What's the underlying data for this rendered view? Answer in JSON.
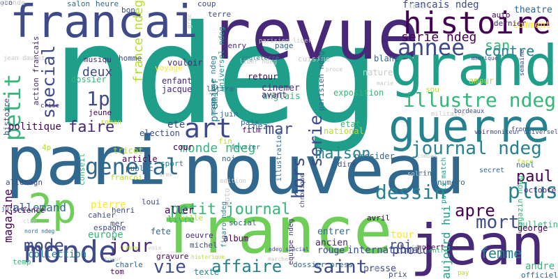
{
  "cloud": {
    "palette": {
      "d": "#440154",
      "p": "#482878",
      "i": "#3e4a89",
      "b": "#31688e",
      "t": "#26828e",
      "g": "#1f9e89",
      "m": "#35b779",
      "l": "#6ece58",
      "y": "#b5de2b",
      "k": "#fde725",
      "s": "#c8c8c8"
    },
    "words": [
      {
        "text": "ndeg",
        "color": "g"
      },
      {
        "text": "revue",
        "color": "p"
      },
      {
        "text": "nouveau",
        "color": "b"
      },
      {
        "text": "pari",
        "color": "b"
      },
      {
        "text": "france",
        "color": "l"
      },
      {
        "text": "jean",
        "color": "p"
      },
      {
        "text": "grand",
        "color": "g"
      },
      {
        "text": "guerre",
        "color": "t"
      },
      {
        "text": "francai",
        "color": "i"
      },
      {
        "text": "histoire",
        "color": "d"
      },
      {
        "text": "monde",
        "color": "i"
      },
      {
        "text": "2p",
        "color": "l"
      },
      {
        "text": "art",
        "color": "i"
      },
      {
        "text": "annee",
        "color": "i"
      },
      {
        "text": "general",
        "color": "b"
      },
      {
        "text": "petit",
        "color": "m"
      },
      {
        "text": "dessin",
        "color": "t"
      },
      {
        "text": "illustre ndeg",
        "color": "m"
      },
      {
        "text": "journal ndeg",
        "color": "t"
      },
      {
        "text": "petit journal",
        "color": "m"
      },
      {
        "text": "special",
        "color": "i"
      },
      {
        "text": "serie",
        "color": "i"
      },
      {
        "text": "1p",
        "color": "i"
      },
      {
        "text": "hors",
        "color": "i"
      },
      {
        "text": "plus",
        "color": "t"
      },
      {
        "text": "mort",
        "color": "i"
      },
      {
        "text": "saint",
        "color": "i"
      },
      {
        "text": "vie",
        "color": "i"
      },
      {
        "text": "jour",
        "color": "p"
      },
      {
        "text": "apre",
        "color": "d"
      },
      {
        "text": "affaire",
        "color": "t"
      },
      {
        "text": "faire",
        "color": "p"
      },
      {
        "text": "maison",
        "color": "t"
      },
      {
        "text": "monde ndeg",
        "color": "m"
      },
      {
        "text": "france ndeg",
        "color": "y"
      },
      {
        "text": "mode",
        "color": "i"
      },
      {
        "text": "mar",
        "color": "i"
      },
      {
        "text": "san",
        "color": "m"
      },
      {
        "text": "contre",
        "color": "t"
      },
      {
        "text": "paul",
        "color": "d"
      },
      {
        "text": "femme",
        "color": "t"
      },
      {
        "text": "francais ndeg",
        "color": "i"
      },
      {
        "text": "serie ndeg",
        "color": "d"
      },
      {
        "text": "deux",
        "color": "i"
      },
      {
        "text": "magazine",
        "color": "d"
      },
      {
        "text": "politique",
        "color": "d"
      },
      {
        "text": "aujourd hui",
        "color": "g"
      },
      {
        "text": "photo",
        "color": "i"
      },
      {
        "text": "europe",
        "color": "m"
      },
      {
        "text": "allemand",
        "color": "b"
      },
      {
        "text": "pierre",
        "color": "k"
      },
      {
        "text": "tour",
        "color": "k"
      },
      {
        "text": "roi",
        "color": "i"
      },
      {
        "text": "andre",
        "color": "m"
      },
      {
        "text": "bulletin",
        "color": "m"
      },
      {
        "text": "collection",
        "color": "t"
      },
      {
        "text": "international",
        "color": "i"
      },
      {
        "text": "magazin ndeg",
        "color": "m"
      },
      {
        "text": "premier",
        "color": "t"
      },
      {
        "text": "comment",
        "color": "k"
      },
      {
        "text": "theatre",
        "color": "b"
      },
      {
        "text": "cinemer",
        "color": "p"
      },
      {
        "text": "anglais",
        "color": "m"
      },
      {
        "text": "ete",
        "color": "i"
      },
      {
        "text": "chez",
        "color": "b"
      },
      {
        "text": "election",
        "color": "i"
      },
      {
        "text": "amour",
        "color": "y"
      },
      {
        "text": "exposition",
        "color": "m"
      },
      {
        "text": "presse",
        "color": "i"
      },
      {
        "text": "entrer",
        "color": "b"
      },
      {
        "text": "ancien",
        "color": "p"
      },
      {
        "text": "rouge",
        "color": "i"
      },
      {
        "text": "aller",
        "color": "d"
      },
      {
        "text": "livre",
        "color": "m"
      },
      {
        "text": "fete",
        "color": "b"
      },
      {
        "text": "jeune",
        "color": "d"
      },
      {
        "text": "etat",
        "color": "m"
      },
      {
        "text": "national",
        "color": "y"
      },
      {
        "text": "presider",
        "color": "b"
      },
      {
        "text": "article",
        "color": "d"
      },
      {
        "text": "public",
        "color": "b"
      },
      {
        "text": "sport",
        "color": "t"
      },
      {
        "text": "cour",
        "color": "d"
      },
      {
        "text": "noir",
        "color": "b"
      },
      {
        "text": "retour",
        "color": "d"
      },
      {
        "text": "blanc",
        "color": "b"
      },
      {
        "text": "enfant",
        "color": "p"
      },
      {
        "text": "jacque",
        "color": "p"
      },
      {
        "text": "voyage",
        "color": "k"
      },
      {
        "text": "vouloir",
        "color": "p"
      },
      {
        "text": "dossier",
        "color": "m"
      },
      {
        "text": "musiqu",
        "color": "p"
      },
      {
        "text": "homme",
        "color": "i"
      },
      {
        "text": "roman",
        "color": "y"
      },
      {
        "text": "cuisine",
        "color": "s"
      },
      {
        "text": "page",
        "color": "b"
      },
      {
        "text": "salon",
        "color": "b"
      },
      {
        "text": "heure",
        "color": "b"
      },
      {
        "text": "bon",
        "color": "i"
      },
      {
        "text": "coup",
        "color": "i"
      },
      {
        "text": "terre",
        "color": "i"
      },
      {
        "text": "henry",
        "color": "p"
      },
      {
        "text": "auto",
        "color": "d"
      },
      {
        "text": "dernier",
        "color": "p"
      },
      {
        "text": "noel",
        "color": "b"
      },
      {
        "text": "octobre",
        "color": "p"
      },
      {
        "text": "george",
        "color": "d"
      },
      {
        "text": "robert",
        "color": "d"
      },
      {
        "text": "michel",
        "color": "i"
      },
      {
        "text": "oeuvre",
        "color": "p"
      },
      {
        "text": "gravure",
        "color": "d"
      },
      {
        "text": "album",
        "color": "d"
      },
      {
        "text": "loui",
        "color": "i"
      },
      {
        "text": "henri",
        "color": "i"
      },
      {
        "text": "cahier",
        "color": "i"
      },
      {
        "text": "espagne",
        "color": "i"
      },
      {
        "text": "mer",
        "color": "i"
      },
      {
        "text": "tom",
        "color": "d"
      },
      {
        "text": "charle",
        "color": "b"
      },
      {
        "text": "temp",
        "color": "m"
      },
      {
        "text": "science",
        "color": "d"
      },
      {
        "text": "avril",
        "color": "d"
      },
      {
        "text": "marine",
        "color": "b"
      },
      {
        "text": "numero",
        "color": "b"
      },
      {
        "text": "avant",
        "color": "p"
      },
      {
        "text": "paix",
        "color": "b"
      },
      {
        "text": "fin",
        "color": "y"
      },
      {
        "text": "film",
        "color": "d"
      },
      {
        "text": "juin",
        "color": "b"
      },
      {
        "text": "social",
        "color": "b"
      },
      {
        "text": "moto",
        "color": "s"
      },
      {
        "text": "lettre",
        "color": "b"
      },
      {
        "text": "4p",
        "color": "y"
      },
      {
        "text": "conseil",
        "color": "m"
      },
      {
        "text": "francoi",
        "color": "y"
      },
      {
        "text": "tricot",
        "color": "y"
      },
      {
        "text": "allemagn",
        "color": "i"
      },
      {
        "text": "dossier press",
        "color": "b"
      },
      {
        "text": "prix",
        "color": "i"
      },
      {
        "text": "texte",
        "color": "t"
      },
      {
        "text": "ville",
        "color": "y"
      },
      {
        "text": "sou",
        "color": "y"
      },
      {
        "text": "face",
        "color": "y"
      },
      {
        "text": "fevrier",
        "color": "t"
      },
      {
        "text": "militaire",
        "color": "s"
      },
      {
        "text": "semaine",
        "color": "i"
      },
      {
        "text": "pay",
        "color": "y"
      },
      {
        "text": "officiel",
        "color": "b"
      },
      {
        "text": "dire",
        "color": "i"
      },
      {
        "text": "secret",
        "color": "b"
      },
      {
        "text": "entre",
        "color": "m"
      },
      {
        "text": "nature",
        "color": "s"
      },
      {
        "text": "histoire",
        "color": "i"
      },
      {
        "text": "action francais",
        "color": "p"
      },
      {
        "text": "parisien ndeg",
        "color": "b"
      },
      {
        "text": "magazine ndeg",
        "color": "t"
      },
      {
        "text": "universel ndeg",
        "color": "g"
      },
      {
        "text": "figaro ndeg",
        "color": "t"
      },
      {
        "text": "equipe ndeg",
        "color": "p"
      },
      {
        "text": "paris match",
        "color": "g"
      },
      {
        "text": "illustration",
        "color": "b"
      },
      {
        "text": "chronique",
        "color": "i"
      },
      {
        "text": "angleterre",
        "color": "t"
      },
      {
        "text": "parisien liber",
        "color": "s"
      },
      {
        "text": "liber ndeg",
        "color": "s"
      },
      {
        "text": "grec",
        "color": "s"
      },
      {
        "text": "londre",
        "color": "s"
      },
      {
        "text": "jean daudet",
        "color": "s"
      },
      {
        "text": "crise",
        "color": "p"
      },
      {
        "text": "bordeaux",
        "color": "i"
      },
      {
        "text": "voir",
        "color": "p"
      },
      {
        "text": "moniteur universel",
        "color": "i"
      },
      {
        "text": "front",
        "color": "i"
      },
      {
        "text": "club",
        "color": "s"
      },
      {
        "text": "juillet",
        "color": "i"
      },
      {
        "text": "nord ndeg",
        "color": "b"
      },
      {
        "text": "ndeg special",
        "color": "i"
      },
      {
        "text": "historique",
        "color": "y"
      },
      {
        "text": "ecole",
        "color": "s"
      },
      {
        "text": "marche",
        "color": "s"
      },
      {
        "text": "edition",
        "color": "s"
      },
      {
        "text": "proce",
        "color": "s"
      },
      {
        "text": "rome",
        "color": "s"
      },
      {
        "text": "amerique",
        "color": "i"
      },
      {
        "text": "combat",
        "color": "s"
      },
      {
        "text": "libre",
        "color": "y"
      },
      {
        "text": "arme",
        "color": "s"
      },
      {
        "text": "voix",
        "color": "s"
      },
      {
        "text": "coeur",
        "color": "s"
      },
      {
        "text": "soleil",
        "color": "s"
      },
      {
        "text": "marie",
        "color": "s"
      },
      {
        "text": "grande",
        "color": "s"
      },
      {
        "text": "oco",
        "color": "i"
      },
      {
        "text": "ch",
        "color": "s"
      }
    ]
  }
}
